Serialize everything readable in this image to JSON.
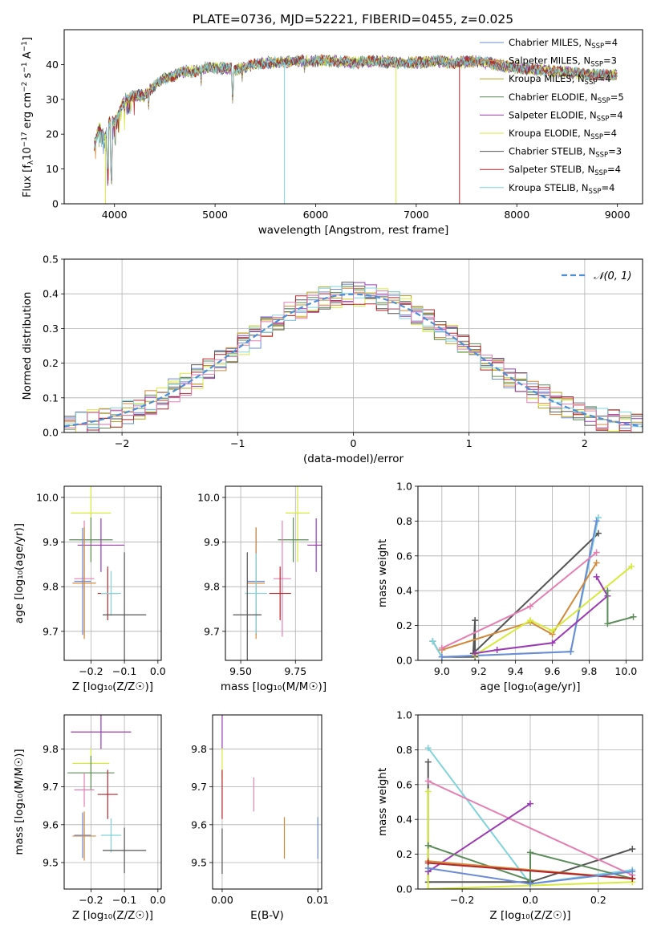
{
  "title": "PLATE=0736, MJD=52221, FIBERID=0455, z=0.025",
  "colors": {
    "blue": "#6b8bd6",
    "orange": "#d2893a",
    "olive": "#b7a21f",
    "green": "#5b8c5a",
    "purple": "#9b3ab3",
    "yellow": "#d7ea3c",
    "gray": "#555555",
    "red": "#b3242b",
    "cyan": "#7fd3dc",
    "pink": "#e57fb3",
    "gauss": "#4f8fd6"
  },
  "legend": [
    {
      "label": "Chabrier MILES, N",
      "sub": "SSP",
      "tail": "=4",
      "color": "#6b8bd6"
    },
    {
      "label": "Salpeter MILES, N",
      "sub": "SSP",
      "tail": "=3",
      "color": "#d2893a"
    },
    {
      "label": "Kroupa MILES, N",
      "sub": "SSP",
      "tail": "=4",
      "color": "#b7a21f"
    },
    {
      "label": "Chabrier ELODIE, N",
      "sub": "SSP",
      "tail": "=5",
      "color": "#5b8c5a"
    },
    {
      "label": "Salpeter ELODIE, N",
      "sub": "SSP",
      "tail": "=4",
      "color": "#9b3ab3"
    },
    {
      "label": "Kroupa ELODIE, N",
      "sub": "SSP",
      "tail": "=4",
      "color": "#d7ea3c"
    },
    {
      "label": "Chabrier STELIB, N",
      "sub": "SSP",
      "tail": "=3",
      "color": "#555555"
    },
    {
      "label": "Salpeter STELIB, N",
      "sub": "SSP",
      "tail": "=4",
      "color": "#b3242b"
    },
    {
      "label": "Kroupa STELIB, N",
      "sub": "SSP",
      "tail": "=4",
      "color": "#7fd3dc"
    }
  ],
  "gauss_legend": "𝒩(0, 1)",
  "chart_data": [
    {
      "id": "spectrum",
      "type": "line",
      "xlabel": "wavelength [Angstrom, rest frame]",
      "ylabel_parts": [
        "Flux [f",
        "λ",
        "10",
        "−17",
        " erg cm",
        "−2",
        " s",
        "−1",
        " A",
        "−1",
        "]"
      ],
      "xlim": [
        3500,
        9250
      ],
      "ylim": [
        0,
        50
      ],
      "xticks": [
        4000,
        5000,
        6000,
        7000,
        8000,
        9000
      ],
      "yticks": [
        0,
        10,
        20,
        30,
        40
      ],
      "continuum": [
        [
          3800,
          17
        ],
        [
          3850,
          22
        ],
        [
          3900,
          19
        ],
        [
          3950,
          24
        ],
        [
          4000,
          23
        ],
        [
          4100,
          30
        ],
        [
          4200,
          31
        ],
        [
          4300,
          31
        ],
        [
          4400,
          34
        ],
        [
          4500,
          36
        ],
        [
          4600,
          37
        ],
        [
          4700,
          38
        ],
        [
          4800,
          38
        ],
        [
          4900,
          39
        ],
        [
          5000,
          39
        ],
        [
          5100,
          39
        ],
        [
          5200,
          38.5
        ],
        [
          5300,
          39.5
        ],
        [
          5400,
          40
        ],
        [
          5500,
          40.5
        ],
        [
          5600,
          40.5
        ],
        [
          5800,
          41
        ],
        [
          6000,
          41
        ],
        [
          6200,
          41
        ],
        [
          6400,
          40.5
        ],
        [
          6600,
          41
        ],
        [
          6800,
          40.5
        ],
        [
          7000,
          40.5
        ],
        [
          7200,
          41
        ],
        [
          7400,
          40.5
        ],
        [
          7600,
          41
        ],
        [
          7800,
          40
        ],
        [
          8000,
          39
        ],
        [
          8200,
          38.5
        ],
        [
          8400,
          38
        ],
        [
          8600,
          37.5
        ],
        [
          8800,
          37
        ],
        [
          9000,
          37
        ]
      ],
      "dips": [
        [
          3934,
          6
        ],
        [
          3969,
          5
        ],
        [
          4101,
          24
        ],
        [
          4340,
          27
        ],
        [
          4861,
          33
        ],
        [
          5175,
          28
        ],
        [
          5270,
          35
        ],
        [
          5890,
          36
        ],
        [
          6563,
          38
        ]
      ],
      "drops": [
        {
          "x": 5690,
          "color": "cyan"
        },
        {
          "x": 6800,
          "color": "yellow"
        },
        {
          "x": 7430,
          "color": "red"
        },
        {
          "x": 3910,
          "color": "yellow"
        }
      ]
    },
    {
      "id": "residuals",
      "type": "bar",
      "xlabel": "(data-model)/error",
      "ylabel": "Normed distribution",
      "xlim": [
        -2.5,
        2.5
      ],
      "ylim": [
        0,
        0.5
      ],
      "xticks": [
        -2,
        -1,
        0,
        1,
        2
      ],
      "xticklabels": [
        "−2",
        "−1",
        "0",
        "1",
        "2"
      ],
      "yticks": [
        0.0,
        0.1,
        0.2,
        0.3,
        0.4,
        0.5
      ],
      "yticklabels": [
        "0.0",
        "0.1",
        "0.2",
        "0.3",
        "0.4",
        "0.5"
      ],
      "bin_width": 0.1,
      "hist_series": [
        "blue",
        "orange",
        "olive",
        "green",
        "purple",
        "yellow",
        "gray",
        "red",
        "cyan",
        "pink"
      ]
    },
    {
      "id": "age-vs-Z",
      "type": "scatter",
      "xlabel": "Z [log₁₀(Z/Z☉)]",
      "ylabel": "age  [log₁₀(age/yr)]",
      "xlim": [
        -0.28,
        0.01
      ],
      "ylim": [
        9.635,
        10.025
      ],
      "xticks": [
        -0.2,
        -0.1,
        0.0
      ],
      "xticklabels": [
        "−0.2",
        "−0.1",
        "0.0"
      ],
      "yticks": [
        9.7,
        9.8,
        9.9,
        10.0
      ],
      "yticklabels": [
        "9.7",
        "9.8",
        "9.9",
        "10.0"
      ],
      "points": [
        {
          "c": "yellow",
          "x": -0.2,
          "xe": 0.06,
          "y": 9.965,
          "ye": 0.11
        },
        {
          "c": "green",
          "x": -0.2,
          "xe": 0.065,
          "y": 9.905,
          "ye": 0.05
        },
        {
          "c": "purple",
          "x": -0.17,
          "xe": 0.07,
          "y": 9.893,
          "ye": 0.06
        },
        {
          "c": "pink",
          "x": -0.22,
          "xe": 0.03,
          "y": 9.818,
          "ye": 0.13
        },
        {
          "c": "blue",
          "x": -0.225,
          "xe": 0.025,
          "y": 9.812,
          "ye": 0.12
        },
        {
          "c": "orange",
          "x": -0.22,
          "xe": 0.035,
          "y": 9.808,
          "ye": 0.125
        },
        {
          "c": "red",
          "x": -0.15,
          "xe": 0.03,
          "y": 9.785,
          "ye": 0.06
        },
        {
          "c": "cyan",
          "x": -0.14,
          "xe": 0.03,
          "y": 9.785,
          "ye": 0.05
        },
        {
          "c": "gray",
          "x": -0.1,
          "xe": 0.065,
          "y": 9.737,
          "ye": 0.14
        }
      ]
    },
    {
      "id": "age-vs-mass",
      "type": "scatter",
      "xlabel": "mass [log₁₀(M/M☉)]",
      "ylabel": "",
      "xlim": [
        9.43,
        9.87
      ],
      "ylim": [
        9.635,
        10.025
      ],
      "xticks": [
        9.5,
        9.75
      ],
      "xticklabels": [
        "9.50",
        "9.75"
      ],
      "yticks": [
        9.7,
        9.8,
        9.9,
        10.0
      ],
      "yticklabels": [
        "9.7",
        "9.8",
        "9.9",
        "10.0"
      ],
      "points": [
        {
          "c": "yellow",
          "x": 9.76,
          "xe": 0.055,
          "y": 9.965,
          "ye": 0.11
        },
        {
          "c": "green",
          "x": 9.74,
          "xe": 0.07,
          "y": 9.905,
          "ye": 0.05
        },
        {
          "c": "purple",
          "x": 9.845,
          "xe": 0.04,
          "y": 9.893,
          "ye": 0.06
        },
        {
          "c": "pink",
          "x": 9.69,
          "xe": 0.04,
          "y": 9.818,
          "ye": 0.13
        },
        {
          "c": "blue",
          "x": 9.57,
          "xe": 0.04,
          "y": 9.812,
          "ye": 0.12
        },
        {
          "c": "orange",
          "x": 9.57,
          "xe": 0.04,
          "y": 9.808,
          "ye": 0.125
        },
        {
          "c": "red",
          "x": 9.68,
          "xe": 0.05,
          "y": 9.785,
          "ye": 0.06
        },
        {
          "c": "cyan",
          "x": 9.57,
          "xe": 0.05,
          "y": 9.785,
          "ye": 0.09
        },
        {
          "c": "gray",
          "x": 9.53,
          "xe": 0.065,
          "y": 9.737,
          "ye": 0.14
        }
      ]
    },
    {
      "id": "weight-vs-age",
      "type": "line",
      "xlabel": "age  [log₁₀(age/yr)]",
      "ylabel": "mass weight",
      "xlim": [
        8.87,
        10.09
      ],
      "ylim": [
        0,
        1
      ],
      "xticks": [
        9.0,
        9.2,
        9.4,
        9.6,
        9.8,
        10.0
      ],
      "xticklabels": [
        "9.0",
        "9.2",
        "9.4",
        "9.6",
        "9.8",
        "10.0"
      ],
      "yticks": [
        0.0,
        0.2,
        0.4,
        0.6,
        0.8,
        1.0
      ],
      "yticklabels": [
        "0.0",
        "0.2",
        "0.4",
        "0.6",
        "0.8",
        "1.0"
      ],
      "series": [
        {
          "c": "gray",
          "pts": [
            [
              8.95,
              0.11
            ],
            [
              9.0,
              0.02
            ],
            [
              9.18,
              0.02
            ],
            [
              9.18,
              0.23
            ],
            [
              9.17,
              0.04
            ],
            [
              9.85,
              0.73
            ]
          ]
        },
        {
          "c": "cyan",
          "pts": [
            [
              8.95,
              0.11
            ],
            [
              9.0,
              0.02
            ],
            [
              9.7,
              0.05
            ],
            [
              9.85,
              0.82
            ]
          ]
        },
        {
          "c": "blue",
          "pts": [
            [
              9.0,
              0.02
            ],
            [
              9.7,
              0.05
            ],
            [
              9.84,
              0.8
            ]
          ]
        },
        {
          "c": "orange",
          "pts": [
            [
              9.0,
              0.06
            ],
            [
              9.48,
              0.22
            ],
            [
              9.6,
              0.15
            ],
            [
              9.84,
              0.56
            ]
          ]
        },
        {
          "c": "pink",
          "pts": [
            [
              9.0,
              0.07
            ],
            [
              9.48,
              0.31
            ],
            [
              9.84,
              0.62
            ]
          ]
        },
        {
          "c": "yellow",
          "pts": [
            [
              9.18,
              0.03
            ],
            [
              9.48,
              0.23
            ],
            [
              9.6,
              0.17
            ],
            [
              10.03,
              0.54
            ]
          ]
        },
        {
          "c": "purple",
          "pts": [
            [
              9.18,
              0.04
            ],
            [
              9.3,
              0.06
            ],
            [
              9.6,
              0.1
            ],
            [
              9.9,
              0.37
            ],
            [
              9.84,
              0.48
            ]
          ]
        },
        {
          "c": "green",
          "pts": [
            [
              9.9,
              0.4
            ],
            [
              9.9,
              0.21
            ],
            [
              10.04,
              0.25
            ]
          ]
        }
      ]
    },
    {
      "id": "mass-vs-Z",
      "type": "scatter",
      "xlabel": "Z [log₁₀(Z/Z☉)]",
      "ylabel": "mass [log₁₀(M/M☉)]",
      "xlim": [
        -0.28,
        0.01
      ],
      "ylim": [
        9.43,
        9.89
      ],
      "xticks": [
        -0.2,
        -0.1,
        0.0
      ],
      "xticklabels": [
        "−0.2",
        "−0.1",
        "0.0"
      ],
      "yticks": [
        9.5,
        9.6,
        9.7,
        9.8
      ],
      "yticklabels": [
        "9.5",
        "9.6",
        "9.7",
        "9.8"
      ],
      "points": [
        {
          "c": "purple",
          "x": -0.17,
          "xe": 0.09,
          "y": 9.845,
          "ye": 0.045
        },
        {
          "c": "yellow",
          "x": -0.2,
          "xe": 0.055,
          "y": 9.762,
          "ye": 0.04
        },
        {
          "c": "green",
          "x": -0.2,
          "xe": 0.07,
          "y": 9.737,
          "ye": 0.045
        },
        {
          "c": "pink",
          "x": -0.22,
          "xe": 0.03,
          "y": 9.692,
          "ye": 0.045
        },
        {
          "c": "red",
          "x": -0.15,
          "xe": 0.03,
          "y": 9.68,
          "ye": 0.065
        },
        {
          "c": "blue",
          "x": -0.225,
          "xe": 0.025,
          "y": 9.572,
          "ye": 0.06
        },
        {
          "c": "orange",
          "x": -0.22,
          "xe": 0.035,
          "y": 9.57,
          "ye": 0.065
        },
        {
          "c": "cyan",
          "x": -0.14,
          "xe": 0.03,
          "y": 9.572,
          "ye": 0.045
        },
        {
          "c": "gray",
          "x": -0.1,
          "xe": 0.065,
          "y": 9.532,
          "ye": 0.06
        }
      ]
    },
    {
      "id": "mass-vs-ebv",
      "type": "scatter",
      "xlabel": "E(B-V)",
      "ylabel": "",
      "xlim": [
        -0.001,
        0.0104
      ],
      "ylim": [
        9.43,
        9.89
      ],
      "xticks": [
        0.0,
        0.01
      ],
      "xticklabels": [
        "0.00",
        "0.01"
      ],
      "yticks": [
        9.5,
        9.6,
        9.7,
        9.8
      ],
      "yticklabels": [
        "9.5",
        "9.6",
        "9.7",
        "9.8"
      ],
      "points": [
        {
          "c": "purple",
          "x": 0.0,
          "xe": 0,
          "y": 9.845,
          "ye": 0.045
        },
        {
          "c": "yellow",
          "x": 0.0,
          "xe": 0,
          "y": 9.762,
          "ye": 0.04
        },
        {
          "c": "red",
          "x": 0.0,
          "xe": 0,
          "y": 9.68,
          "ye": 0.065
        },
        {
          "c": "gray",
          "x": 0.0,
          "xe": 0,
          "y": 9.53,
          "ye": 0.06
        },
        {
          "c": "pink",
          "x": 0.0033,
          "xe": 0,
          "y": 9.68,
          "ye": 0.045
        },
        {
          "c": "orange",
          "x": 0.0065,
          "xe": 0,
          "y": 9.565,
          "ye": 0.055
        },
        {
          "c": "blue",
          "x": 0.01,
          "xe": 0,
          "y": 9.565,
          "ye": 0.055
        }
      ]
    },
    {
      "id": "weight-vs-Z",
      "type": "line",
      "xlabel": "Z [log₁₀(Z/Z☉)]",
      "ylabel": "mass weight",
      "xlim": [
        -0.33,
        0.33
      ],
      "ylim": [
        0,
        1
      ],
      "xticks": [
        -0.2,
        0.0,
        0.2
      ],
      "xticklabels": [
        "−0.2",
        "0.0",
        "0.2"
      ],
      "yticks": [
        0.0,
        0.2,
        0.4,
        0.6,
        0.8,
        1.0
      ],
      "yticklabels": [
        "0.0",
        "0.2",
        "0.4",
        "0.6",
        "0.8",
        "1.0"
      ],
      "series": [
        {
          "c": "cyan",
          "pts": [
            [
              -0.3,
              0.81
            ],
            [
              0.0,
              0.03
            ],
            [
              0.3,
              0.11
            ]
          ]
        },
        {
          "c": "gray",
          "pts": [
            [
              -0.3,
              0.73
            ],
            [
              -0.3,
              0.04
            ],
            [
              0.0,
              0.04
            ],
            [
              0.3,
              0.23
            ]
          ]
        },
        {
          "c": "pink",
          "pts": [
            [
              -0.3,
              0.62
            ],
            [
              0.3,
              0.08
            ]
          ]
        },
        {
          "c": "yellow",
          "pts": [
            [
              -0.3,
              0.56
            ],
            [
              -0.3,
              0.0
            ],
            [
              0.3,
              0.04
            ]
          ]
        },
        {
          "c": "purple",
          "pts": [
            [
              -0.3,
              0.1
            ],
            [
              0.0,
              0.49
            ]
          ]
        },
        {
          "c": "green",
          "pts": [
            [
              -0.3,
              0.25
            ],
            [
              0.0,
              0.05
            ],
            [
              0.0,
              0.21
            ],
            [
              0.3,
              0.06
            ]
          ]
        },
        {
          "c": "orange",
          "pts": [
            [
              -0.3,
              0.16
            ],
            [
              0.3,
              0.06
            ]
          ]
        },
        {
          "c": "red",
          "pts": [
            [
              -0.3,
              0.15
            ],
            [
              0.3,
              0.06
            ]
          ]
        },
        {
          "c": "blue",
          "pts": [
            [
              -0.3,
              0.12
            ],
            [
              0.0,
              0.03
            ],
            [
              0.3,
              0.1
            ]
          ]
        }
      ]
    }
  ]
}
